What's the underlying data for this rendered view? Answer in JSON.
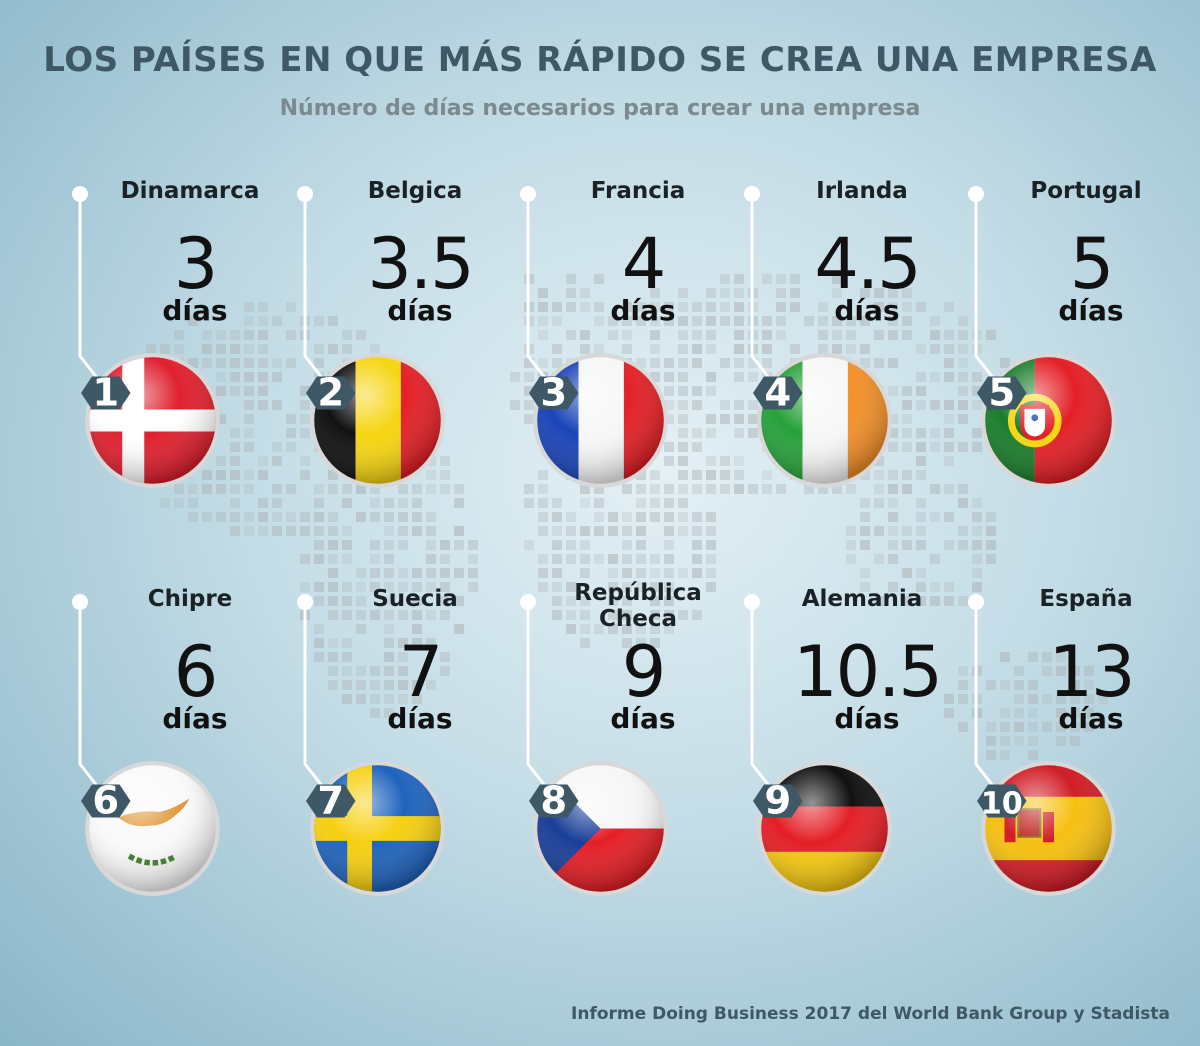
{
  "title": "LOS PAÍSES EN QUE MÁS RÁPIDO SE CREA UNA EMPRESA",
  "subtitle": "Número de días necesarios para crear una empresa",
  "source": "Informe Doing Business 2017 del World Bank Group y Stadista",
  "countries": [
    {
      "rank": "1",
      "name": "Dinamarca",
      "value": "3",
      "unit": "días",
      "flag": "denmark-flag"
    },
    {
      "rank": "2",
      "name": "Belgica",
      "value": "3.5",
      "unit": "días",
      "flag": "belgium-flag"
    },
    {
      "rank": "3",
      "name": "Francia",
      "value": "4",
      "unit": "días",
      "flag": "france-flag"
    },
    {
      "rank": "4",
      "name": "Irlanda",
      "value": "4.5",
      "unit": "días",
      "flag": "ireland-flag"
    },
    {
      "rank": "5",
      "name": "Portugal",
      "value": "5",
      "unit": "días",
      "flag": "portugal-flag"
    },
    {
      "rank": "6",
      "name": "Chipre",
      "value": "6",
      "unit": "días",
      "flag": "cyprus-flag"
    },
    {
      "rank": "7",
      "name": "Suecia",
      "value": "7",
      "unit": "días",
      "flag": "sweden-flag"
    },
    {
      "rank": "8",
      "name": "República\nCheca",
      "value": "9",
      "unit": "días",
      "flag": "czech-flag"
    },
    {
      "rank": "9",
      "name": "Alemania",
      "value": "10.5",
      "unit": "días",
      "flag": "germany-flag"
    },
    {
      "rank": "10",
      "name": "España",
      "value": "13",
      "unit": "días",
      "flag": "spain-flag"
    }
  ],
  "colors": {
    "title": "#3e5866",
    "subtitle": "#7c8a90",
    "rank_badge": "#3e5866",
    "map_dots": "#aeb6ba"
  }
}
